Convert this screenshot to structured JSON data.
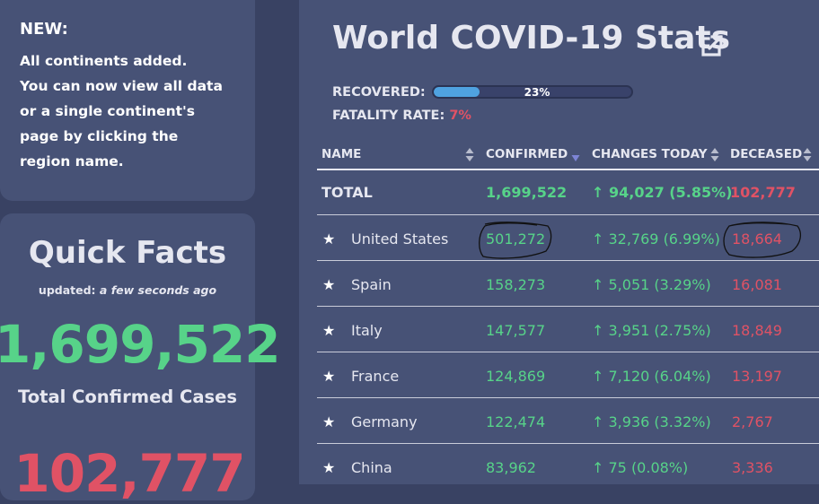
{
  "news": {
    "title": "NEW:",
    "lines": [
      "All continents added.",
      "You can now view all data",
      "or a single continent's",
      "page by clicking the",
      "region name."
    ]
  },
  "quick_facts": {
    "title": "Quick Facts",
    "updated_prefix": "updated:",
    "updated_value": "a few seconds ago",
    "total_confirmed": "1,699,522",
    "total_confirmed_label": "Total Confirmed Cases",
    "total_deaths": "102,777"
  },
  "header": {
    "title": "World COVID-19 Stats",
    "recovered_label": "RECOVERED:",
    "recovered_percent_text": "23%",
    "recovered_fraction": 0.23,
    "fatality_label": "FATALITY RATE:",
    "fatality_value": "7%"
  },
  "table": {
    "columns": [
      "NAME",
      "CONFIRMED",
      "CHANGES TODAY",
      "DECEASED"
    ],
    "total": {
      "name": "TOTAL",
      "confirmed": "1,699,522",
      "change": "↑ 94,027 (5.85%)",
      "deceased": "102,777"
    },
    "star": "★",
    "rows": [
      {
        "name": "United States",
        "confirmed": "501,272",
        "change": "↑ 32,769 (6.99%)",
        "deceased": "18,664"
      },
      {
        "name": "Spain",
        "confirmed": "158,273",
        "change": "↑ 5,051 (3.29%)",
        "deceased": "16,081"
      },
      {
        "name": "Italy",
        "confirmed": "147,577",
        "change": "↑ 3,951 (2.75%)",
        "deceased": "18,849"
      },
      {
        "name": "France",
        "confirmed": "124,869",
        "change": "↑ 7,120 (6.04%)",
        "deceased": "13,197"
      },
      {
        "name": "Germany",
        "confirmed": "122,474",
        "change": "↑ 3,936 (3.32%)",
        "deceased": "2,767"
      },
      {
        "name": "China",
        "confirmed": "83,962",
        "change": "↑ 75 (0.08%)",
        "deceased": "3,336"
      }
    ]
  },
  "colors": {
    "green": "#57d389",
    "red": "#e05265",
    "progress_blue": "#4fa2e0",
    "sort_active": "#7d84d6"
  },
  "icons": [
    "external-link-icon",
    "sort-icon",
    "sort-desc-icon",
    "star-icon"
  ]
}
